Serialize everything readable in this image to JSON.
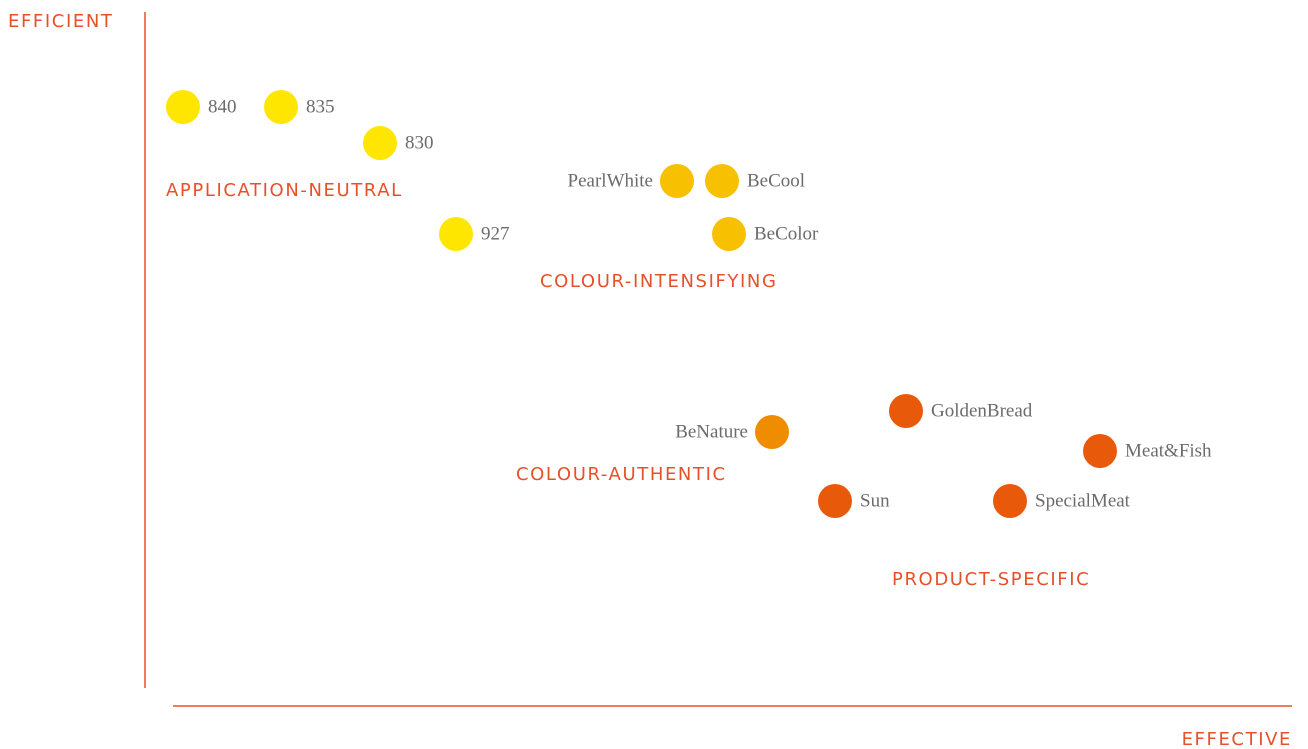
{
  "axes": {
    "y": "EFFICIENT",
    "x": "EFFECTIVE"
  },
  "groups": [
    "APPLICATION-NEUTRAL",
    "COLOUR-INTENSIFYING",
    "COLOUR-AUTHENTIC",
    "PRODUCT-SPECIFIC"
  ],
  "nodes": [
    {
      "label": "840"
    },
    {
      "label": "835"
    },
    {
      "label": "830"
    },
    {
      "label": "927"
    },
    {
      "label": "PearlWhite"
    },
    {
      "label": "BeCool"
    },
    {
      "label": "BeColor"
    },
    {
      "label": "BeNature"
    },
    {
      "label": "GoldenBread"
    },
    {
      "label": "Meat&Fish"
    },
    {
      "label": "Sun"
    },
    {
      "label": "SpecialMeat"
    }
  ]
}
